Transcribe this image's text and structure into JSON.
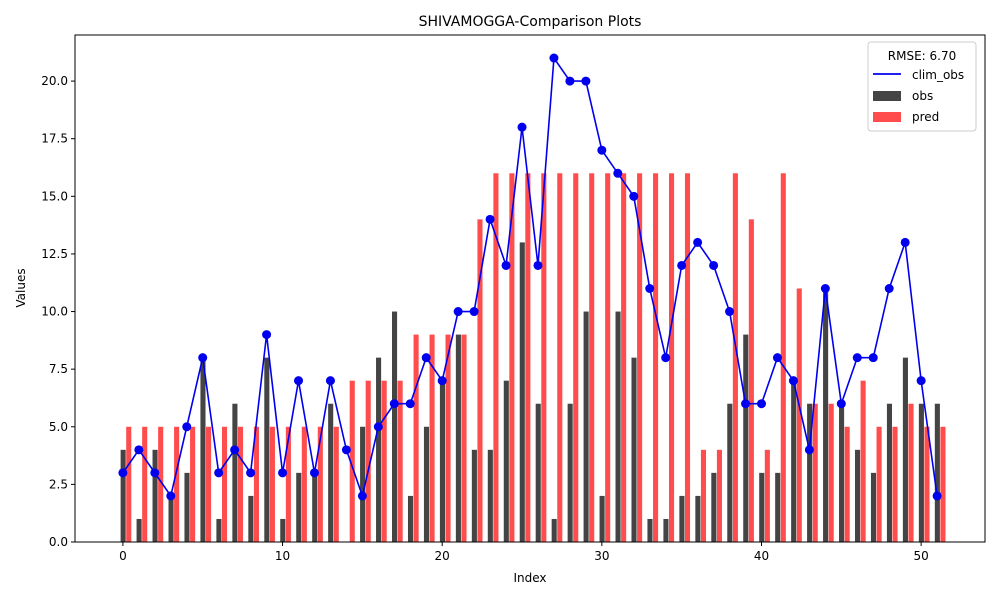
{
  "chart_data": {
    "type": "bar",
    "title": "SHIVAMOGGA-Comparison Plots",
    "xlabel": "Index",
    "ylabel": "Values",
    "xlim": [
      -3,
      54
    ],
    "ylim": [
      0,
      22
    ],
    "xticks": [
      0,
      10,
      20,
      30,
      40,
      50
    ],
    "yticks": [
      0.0,
      2.5,
      5.0,
      7.5,
      10.0,
      12.5,
      15.0,
      17.5,
      20.0
    ],
    "ytick_labels": [
      "0.0",
      "2.5",
      "5.0",
      "7.5",
      "10.0",
      "12.5",
      "15.0",
      "17.5",
      "20.0"
    ],
    "x": [
      0,
      1,
      2,
      3,
      4,
      5,
      6,
      7,
      8,
      9,
      10,
      11,
      12,
      13,
      14,
      15,
      16,
      17,
      18,
      19,
      20,
      21,
      22,
      23,
      24,
      25,
      26,
      27,
      28,
      29,
      30,
      31,
      32,
      33,
      34,
      35,
      36,
      37,
      38,
      39,
      40,
      41,
      42,
      43,
      44,
      45,
      46,
      47,
      48,
      49,
      50,
      51
    ],
    "legend": {
      "title": "RMSE: 6.70",
      "position": "top-right",
      "entries": [
        {
          "label": "clim_obs",
          "kind": "line"
        },
        {
          "label": "obs",
          "kind": "bar"
        },
        {
          "label": "pred",
          "kind": "bar"
        }
      ]
    },
    "series": [
      {
        "name": "obs",
        "kind": "bar",
        "color": "#444444",
        "values": [
          4,
          1,
          4,
          2,
          3,
          8,
          1,
          6,
          2,
          8,
          1,
          3,
          3,
          6,
          0,
          5,
          8,
          10,
          2,
          5,
          7,
          9,
          4,
          4,
          7,
          13,
          6,
          1,
          6,
          10,
          2,
          10,
          8,
          1,
          1,
          2,
          2,
          3,
          6,
          9,
          3,
          3,
          7,
          6,
          11,
          6,
          4,
          3,
          6,
          8,
          6,
          6
        ]
      },
      {
        "name": "pred",
        "kind": "bar",
        "color": "#ff4d4d",
        "values": [
          5,
          5,
          5,
          5,
          5,
          5,
          5,
          5,
          5,
          5,
          5,
          5,
          5,
          5,
          7,
          7,
          7,
          7,
          9,
          9,
          9,
          9,
          14,
          16,
          16,
          16,
          16,
          16,
          16,
          16,
          16,
          16,
          16,
          16,
          16,
          16,
          4,
          4,
          16,
          14,
          4,
          16,
          11,
          6,
          6,
          5,
          7,
          5,
          5,
          6,
          5,
          5
        ]
      },
      {
        "name": "clim_obs",
        "kind": "line",
        "color": "#0000ee",
        "values": [
          3,
          4,
          3,
          2,
          5,
          8,
          3,
          4,
          3,
          9,
          3,
          7,
          3,
          7,
          4,
          2,
          5,
          6,
          6,
          8,
          7,
          10,
          10,
          14,
          12,
          18,
          12,
          21,
          20,
          20,
          17,
          16,
          15,
          11,
          8,
          12,
          13,
          12,
          10,
          6,
          6,
          8,
          7,
          4,
          11,
          6,
          8,
          8,
          11,
          13,
          7,
          2
        ]
      }
    ]
  }
}
